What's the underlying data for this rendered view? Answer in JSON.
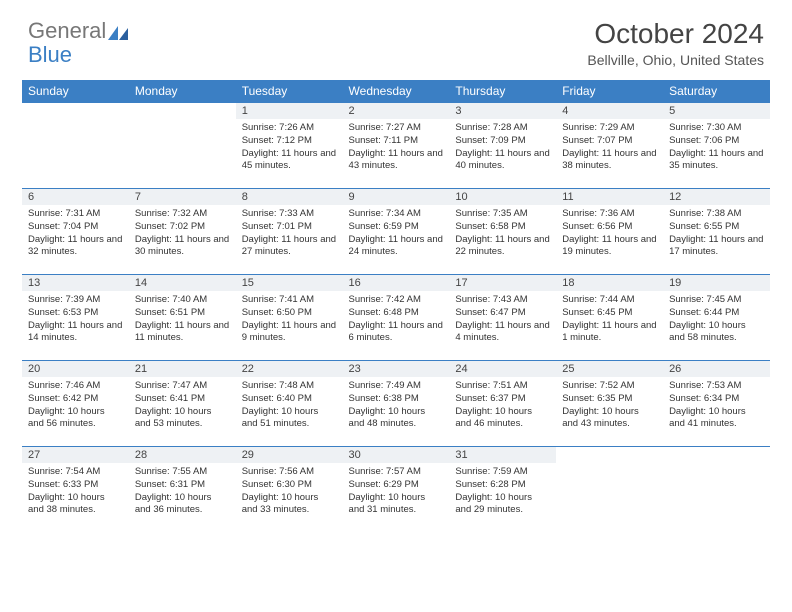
{
  "brand": {
    "part1": "General",
    "part2": "Blue"
  },
  "title": "October 2024",
  "location": "Bellville, Ohio, United States",
  "colors": {
    "header_bg": "#3b7fc4",
    "daynum_bg": "#eef1f4",
    "border": "#3b7fc4",
    "text": "#333333",
    "bg": "#ffffff"
  },
  "day_headers": [
    "Sunday",
    "Monday",
    "Tuesday",
    "Wednesday",
    "Thursday",
    "Friday",
    "Saturday"
  ],
  "weeks": [
    [
      null,
      null,
      {
        "n": "1",
        "sunrise": "7:26 AM",
        "sunset": "7:12 PM",
        "dl": "11 hours and 45 minutes."
      },
      {
        "n": "2",
        "sunrise": "7:27 AM",
        "sunset": "7:11 PM",
        "dl": "11 hours and 43 minutes."
      },
      {
        "n": "3",
        "sunrise": "7:28 AM",
        "sunset": "7:09 PM",
        "dl": "11 hours and 40 minutes."
      },
      {
        "n": "4",
        "sunrise": "7:29 AM",
        "sunset": "7:07 PM",
        "dl": "11 hours and 38 minutes."
      },
      {
        "n": "5",
        "sunrise": "7:30 AM",
        "sunset": "7:06 PM",
        "dl": "11 hours and 35 minutes."
      }
    ],
    [
      {
        "n": "6",
        "sunrise": "7:31 AM",
        "sunset": "7:04 PM",
        "dl": "11 hours and 32 minutes."
      },
      {
        "n": "7",
        "sunrise": "7:32 AM",
        "sunset": "7:02 PM",
        "dl": "11 hours and 30 minutes."
      },
      {
        "n": "8",
        "sunrise": "7:33 AM",
        "sunset": "7:01 PM",
        "dl": "11 hours and 27 minutes."
      },
      {
        "n": "9",
        "sunrise": "7:34 AM",
        "sunset": "6:59 PM",
        "dl": "11 hours and 24 minutes."
      },
      {
        "n": "10",
        "sunrise": "7:35 AM",
        "sunset": "6:58 PM",
        "dl": "11 hours and 22 minutes."
      },
      {
        "n": "11",
        "sunrise": "7:36 AM",
        "sunset": "6:56 PM",
        "dl": "11 hours and 19 minutes."
      },
      {
        "n": "12",
        "sunrise": "7:38 AM",
        "sunset": "6:55 PM",
        "dl": "11 hours and 17 minutes."
      }
    ],
    [
      {
        "n": "13",
        "sunrise": "7:39 AM",
        "sunset": "6:53 PM",
        "dl": "11 hours and 14 minutes."
      },
      {
        "n": "14",
        "sunrise": "7:40 AM",
        "sunset": "6:51 PM",
        "dl": "11 hours and 11 minutes."
      },
      {
        "n": "15",
        "sunrise": "7:41 AM",
        "sunset": "6:50 PM",
        "dl": "11 hours and 9 minutes."
      },
      {
        "n": "16",
        "sunrise": "7:42 AM",
        "sunset": "6:48 PM",
        "dl": "11 hours and 6 minutes."
      },
      {
        "n": "17",
        "sunrise": "7:43 AM",
        "sunset": "6:47 PM",
        "dl": "11 hours and 4 minutes."
      },
      {
        "n": "18",
        "sunrise": "7:44 AM",
        "sunset": "6:45 PM",
        "dl": "11 hours and 1 minute."
      },
      {
        "n": "19",
        "sunrise": "7:45 AM",
        "sunset": "6:44 PM",
        "dl": "10 hours and 58 minutes."
      }
    ],
    [
      {
        "n": "20",
        "sunrise": "7:46 AM",
        "sunset": "6:42 PM",
        "dl": "10 hours and 56 minutes."
      },
      {
        "n": "21",
        "sunrise": "7:47 AM",
        "sunset": "6:41 PM",
        "dl": "10 hours and 53 minutes."
      },
      {
        "n": "22",
        "sunrise": "7:48 AM",
        "sunset": "6:40 PM",
        "dl": "10 hours and 51 minutes."
      },
      {
        "n": "23",
        "sunrise": "7:49 AM",
        "sunset": "6:38 PM",
        "dl": "10 hours and 48 minutes."
      },
      {
        "n": "24",
        "sunrise": "7:51 AM",
        "sunset": "6:37 PM",
        "dl": "10 hours and 46 minutes."
      },
      {
        "n": "25",
        "sunrise": "7:52 AM",
        "sunset": "6:35 PM",
        "dl": "10 hours and 43 minutes."
      },
      {
        "n": "26",
        "sunrise": "7:53 AM",
        "sunset": "6:34 PM",
        "dl": "10 hours and 41 minutes."
      }
    ],
    [
      {
        "n": "27",
        "sunrise": "7:54 AM",
        "sunset": "6:33 PM",
        "dl": "10 hours and 38 minutes."
      },
      {
        "n": "28",
        "sunrise": "7:55 AM",
        "sunset": "6:31 PM",
        "dl": "10 hours and 36 minutes."
      },
      {
        "n": "29",
        "sunrise": "7:56 AM",
        "sunset": "6:30 PM",
        "dl": "10 hours and 33 minutes."
      },
      {
        "n": "30",
        "sunrise": "7:57 AM",
        "sunset": "6:29 PM",
        "dl": "10 hours and 31 minutes."
      },
      {
        "n": "31",
        "sunrise": "7:59 AM",
        "sunset": "6:28 PM",
        "dl": "10 hours and 29 minutes."
      },
      null,
      null
    ]
  ],
  "labels": {
    "sunrise": "Sunrise:",
    "sunset": "Sunset:",
    "daylight": "Daylight:"
  }
}
